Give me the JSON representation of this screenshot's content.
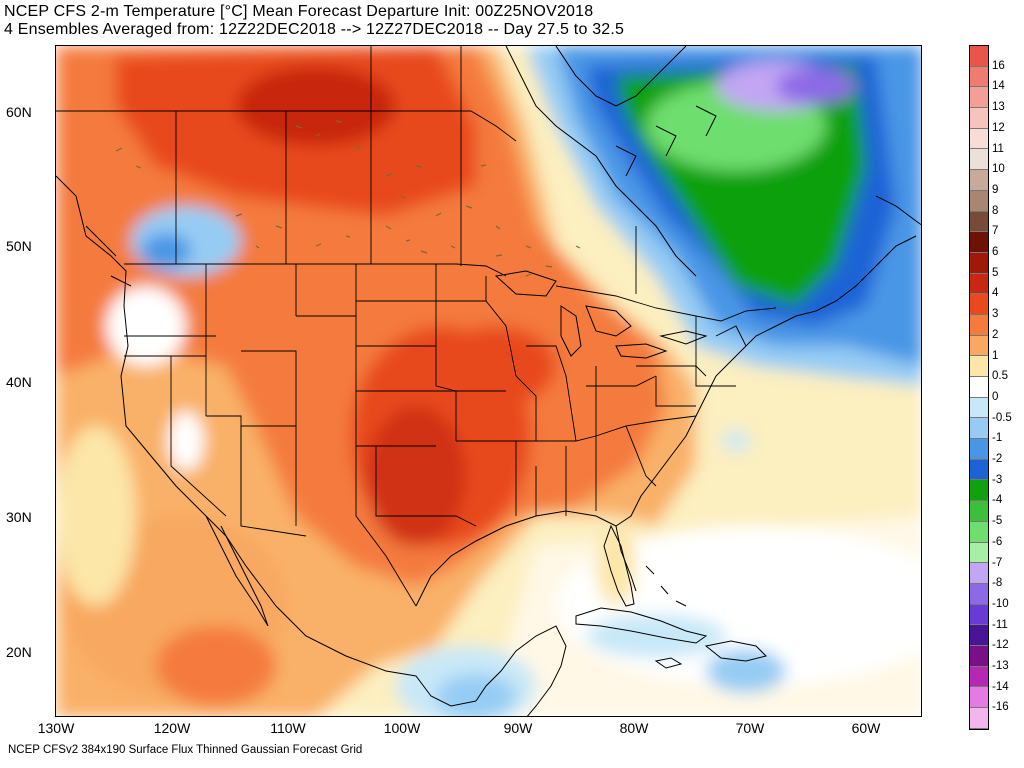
{
  "title": {
    "line1": "NCEP CFS 2-m Temperature [°C] Mean Forecast Departure Init: 00Z25NOV2018",
    "line2": "4 Ensembles Averaged from: 12Z22DEC2018 --> 12Z27DEC2018 -- Day 27.5 to 32.5"
  },
  "footer": "NCEP CFSv2 384x190 Surface Flux Thinned Gaussian Forecast Grid",
  "map": {
    "lat_labels": [
      "60N",
      "50N",
      "40N",
      "30N",
      "20N"
    ],
    "lon_labels": [
      "130W",
      "120W",
      "110W",
      "100W",
      "90W",
      "80W",
      "70W",
      "60W"
    ]
  },
  "colorbar": {
    "labels": [
      "16",
      "14",
      "13",
      "12",
      "11",
      "10",
      "9",
      "8",
      "7",
      "6",
      "5",
      "4",
      "3",
      "2",
      "1",
      "0.5",
      "0",
      "-0.5",
      "-1",
      "-2",
      "-3",
      "-4",
      "-5",
      "-6",
      "-7",
      "-8",
      "-10",
      "-11",
      "-12",
      "-13",
      "-14",
      "-16"
    ],
    "colors": [
      "#e8564a",
      "#ee7c70",
      "#f2a096",
      "#f6c4bc",
      "#f8dcd6",
      "#ece0da",
      "#c8aa9a",
      "#a88674",
      "#7a4a38",
      "#6e1208",
      "#a01808",
      "#c82810",
      "#e84a1e",
      "#f47a3e",
      "#f8a860",
      "#fce6a8",
      "#ffffff",
      "#c8e8f8",
      "#96ccf4",
      "#4a96e6",
      "#1c64d6",
      "#10a010",
      "#3cc03c",
      "#6ede6e",
      "#a6f0a6",
      "#c2a6f4",
      "#8c6ae6",
      "#6a3ad6",
      "#4a1496",
      "#781088",
      "#b428b4",
      "#e47ae4",
      "#f4b4f0"
    ]
  }
}
